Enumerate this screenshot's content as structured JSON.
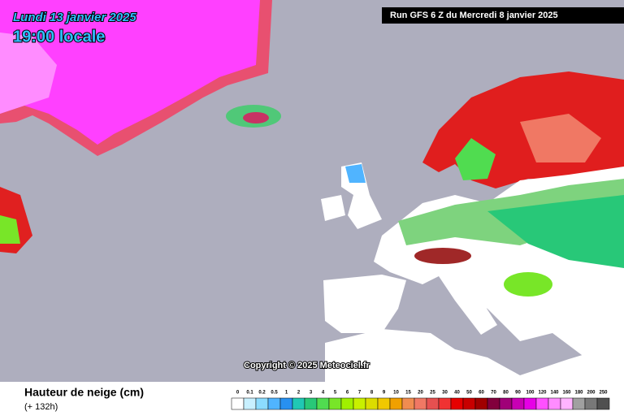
{
  "header": {
    "date": "Lundi 13 janvier 2025",
    "time": "19:00 locale",
    "run": "Run GFS 6 Z du Mercredi 8 janvier 2025"
  },
  "copyright": "Copyright © 2025 Meteociel.fr",
  "footer": {
    "title": "Hauteur de neige (cm)",
    "lead": "(+ 132h)"
  },
  "legend": {
    "items": [
      {
        "label": "0",
        "color": "#ffffff"
      },
      {
        "label": "0.1",
        "color": "#c8f0ff"
      },
      {
        "label": "0.2",
        "color": "#8cdcff"
      },
      {
        "label": "0.5",
        "color": "#50b4ff"
      },
      {
        "label": "1",
        "color": "#2890f0"
      },
      {
        "label": "2",
        "color": "#20c8b4"
      },
      {
        "label": "3",
        "color": "#28c878"
      },
      {
        "label": "4",
        "color": "#50dc50"
      },
      {
        "label": "5",
        "color": "#78e628"
      },
      {
        "label": "6",
        "color": "#a0f000"
      },
      {
        "label": "7",
        "color": "#c8f000"
      },
      {
        "label": "8",
        "color": "#dcdc00"
      },
      {
        "label": "9",
        "color": "#f0c800"
      },
      {
        "label": "10",
        "color": "#f0a000"
      },
      {
        "label": "15",
        "color": "#f08c50"
      },
      {
        "label": "20",
        "color": "#f07864"
      },
      {
        "label": "25",
        "color": "#e65050"
      },
      {
        "label": "30",
        "color": "#f03232"
      },
      {
        "label": "40",
        "color": "#e60000"
      },
      {
        "label": "50",
        "color": "#c80000"
      },
      {
        "label": "60",
        "color": "#a00000"
      },
      {
        "label": "70",
        "color": "#82003c"
      },
      {
        "label": "80",
        "color": "#a00078"
      },
      {
        "label": "90",
        "color": "#c800b4"
      },
      {
        "label": "100",
        "color": "#e600e6"
      },
      {
        "label": "120",
        "color": "#ff50ff"
      },
      {
        "label": "140",
        "color": "#ff8cff"
      },
      {
        "label": "160",
        "color": "#ffb4ff"
      },
      {
        "label": "180",
        "color": "#a0a0a0"
      },
      {
        "label": "200",
        "color": "#787878"
      },
      {
        "label": "250",
        "color": "#505050"
      }
    ]
  }
}
